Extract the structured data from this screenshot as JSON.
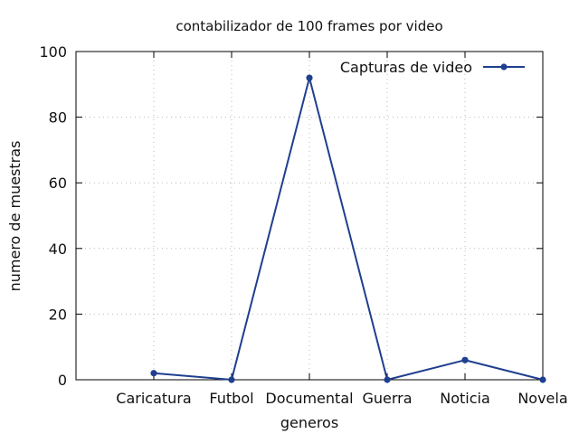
{
  "chart_data": {
    "type": "line",
    "title": "contabilizador de 100 frames por video",
    "xlabel": "generos",
    "ylabel": "numero de muestras",
    "categories": [
      "Caricatura",
      "Futbol",
      "Documental",
      "Guerra",
      "Noticia",
      "Novela"
    ],
    "series": [
      {
        "name": "Capturas de video",
        "values": [
          2,
          0,
          92,
          0,
          6,
          0
        ],
        "color": "#1f3f8f"
      }
    ],
    "ylim": [
      0,
      100
    ],
    "yticks": [
      0,
      20,
      40,
      60,
      80,
      100
    ],
    "grid": true,
    "legend_position": "top-right"
  }
}
